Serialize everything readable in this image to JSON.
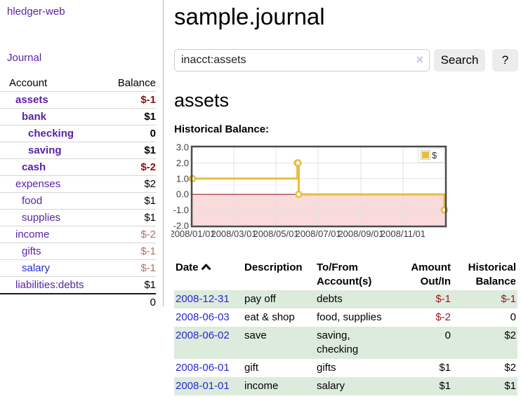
{
  "app": {
    "title": "hledger-web",
    "nav_journal": "Journal"
  },
  "sidebar": {
    "header": {
      "account": "Account",
      "balance": "Balance"
    },
    "rows": [
      {
        "name": "assets",
        "indent": 0,
        "bold": true,
        "blue": false,
        "balance": "$-1",
        "balance_class": "neg-strong"
      },
      {
        "name": "bank",
        "indent": 1,
        "bold": true,
        "blue": false,
        "balance": "$1",
        "balance_class": ""
      },
      {
        "name": "checking",
        "indent": 2,
        "bold": true,
        "blue": false,
        "balance": "0",
        "balance_class": ""
      },
      {
        "name": "saving",
        "indent": 2,
        "bold": true,
        "blue": false,
        "balance": "$1",
        "balance_class": ""
      },
      {
        "name": "cash",
        "indent": 1,
        "bold": true,
        "blue": false,
        "balance": "$-2",
        "balance_class": "neg-strong"
      },
      {
        "name": "expenses",
        "indent": 0,
        "bold": false,
        "blue": false,
        "balance": "$2",
        "balance_class": ""
      },
      {
        "name": "food",
        "indent": 1,
        "bold": false,
        "blue": false,
        "balance": "$1",
        "balance_class": ""
      },
      {
        "name": "supplies",
        "indent": 1,
        "bold": false,
        "blue": false,
        "balance": "$1",
        "balance_class": ""
      },
      {
        "name": "income",
        "indent": 0,
        "bold": false,
        "blue": false,
        "balance": "$-2",
        "balance_class": "neg-soft"
      },
      {
        "name": "gifts",
        "indent": 1,
        "bold": false,
        "blue": false,
        "balance": "$-1",
        "balance_class": "neg-soft"
      },
      {
        "name": "salary",
        "indent": 1,
        "bold": false,
        "blue": true,
        "balance": "$-1",
        "balance_class": "neg-soft"
      },
      {
        "name": "liabilities:debts",
        "indent": 0,
        "bold": false,
        "blue": false,
        "balance": "$1",
        "balance_class": ""
      }
    ],
    "total": "0"
  },
  "main": {
    "title": "sample.journal",
    "search": {
      "value": "inacct:assets",
      "clear_icon": "×",
      "button": "Search",
      "help_button": "?"
    },
    "account_heading": "assets",
    "chart_label": "Historical Balance:",
    "register": {
      "headers": {
        "date": "Date",
        "description": "Description",
        "tofrom": [
          "To/From",
          "Account(s)"
        ],
        "amount": [
          "Amount",
          "Out/In"
        ],
        "balance": [
          "Historical",
          "Balance"
        ]
      },
      "rows": [
        {
          "date": "2008-12-31",
          "description": "pay off",
          "accounts": [
            "debts"
          ],
          "amount": "$-1",
          "amount_neg": true,
          "balance": "$-1",
          "balance_neg": true,
          "shaded": true
        },
        {
          "date": "2008-06-03",
          "description": "eat & shop",
          "accounts": [
            "food, supplies"
          ],
          "amount": "$-2",
          "amount_neg": true,
          "balance": "0",
          "balance_neg": false,
          "shaded": false
        },
        {
          "date": "2008-06-02",
          "description": "save",
          "accounts": [
            "saving,",
            "checking"
          ],
          "amount": "0",
          "amount_neg": false,
          "balance": "$2",
          "balance_neg": false,
          "shaded": true
        },
        {
          "date": "2008-06-01",
          "description": "gift",
          "accounts": [
            "gifts"
          ],
          "amount": "$1",
          "amount_neg": false,
          "balance": "$2",
          "balance_neg": false,
          "shaded": false
        },
        {
          "date": "2008-01-01",
          "description": "income",
          "accounts": [
            "salary"
          ],
          "amount": "$1",
          "amount_neg": false,
          "balance": "$1",
          "balance_neg": false,
          "shaded": true
        }
      ]
    }
  },
  "chart_data": {
    "type": "line",
    "title": "Historical Balance:",
    "series": [
      {
        "name": "$",
        "color": "#e8bd3f",
        "steps": true,
        "points": [
          {
            "date": "2008-01-01",
            "value": 1
          },
          {
            "date": "2008-06-01",
            "value": 2
          },
          {
            "date": "2008-06-02",
            "value": 2
          },
          {
            "date": "2008-06-03",
            "value": 0
          },
          {
            "date": "2008-12-31",
            "value": -1
          }
        ]
      }
    ],
    "yticks": [
      "3.0",
      "2.0",
      "1.0",
      "0.0",
      "-1.0",
      "-2.0"
    ],
    "xticks": [
      "2008/01/01",
      "2008/03/01",
      "2008/05/01",
      "2008/07/01",
      "2008/09/01",
      "2008/11/01"
    ],
    "ylim": [
      -2,
      3
    ],
    "x_range": [
      "2008-01-01",
      "2008-12-31"
    ],
    "grid": true,
    "negative_fill": "#f9dbdb",
    "zero_line_color": "#8b1a1a",
    "legend": {
      "label": "$",
      "position": "top-right"
    }
  }
}
